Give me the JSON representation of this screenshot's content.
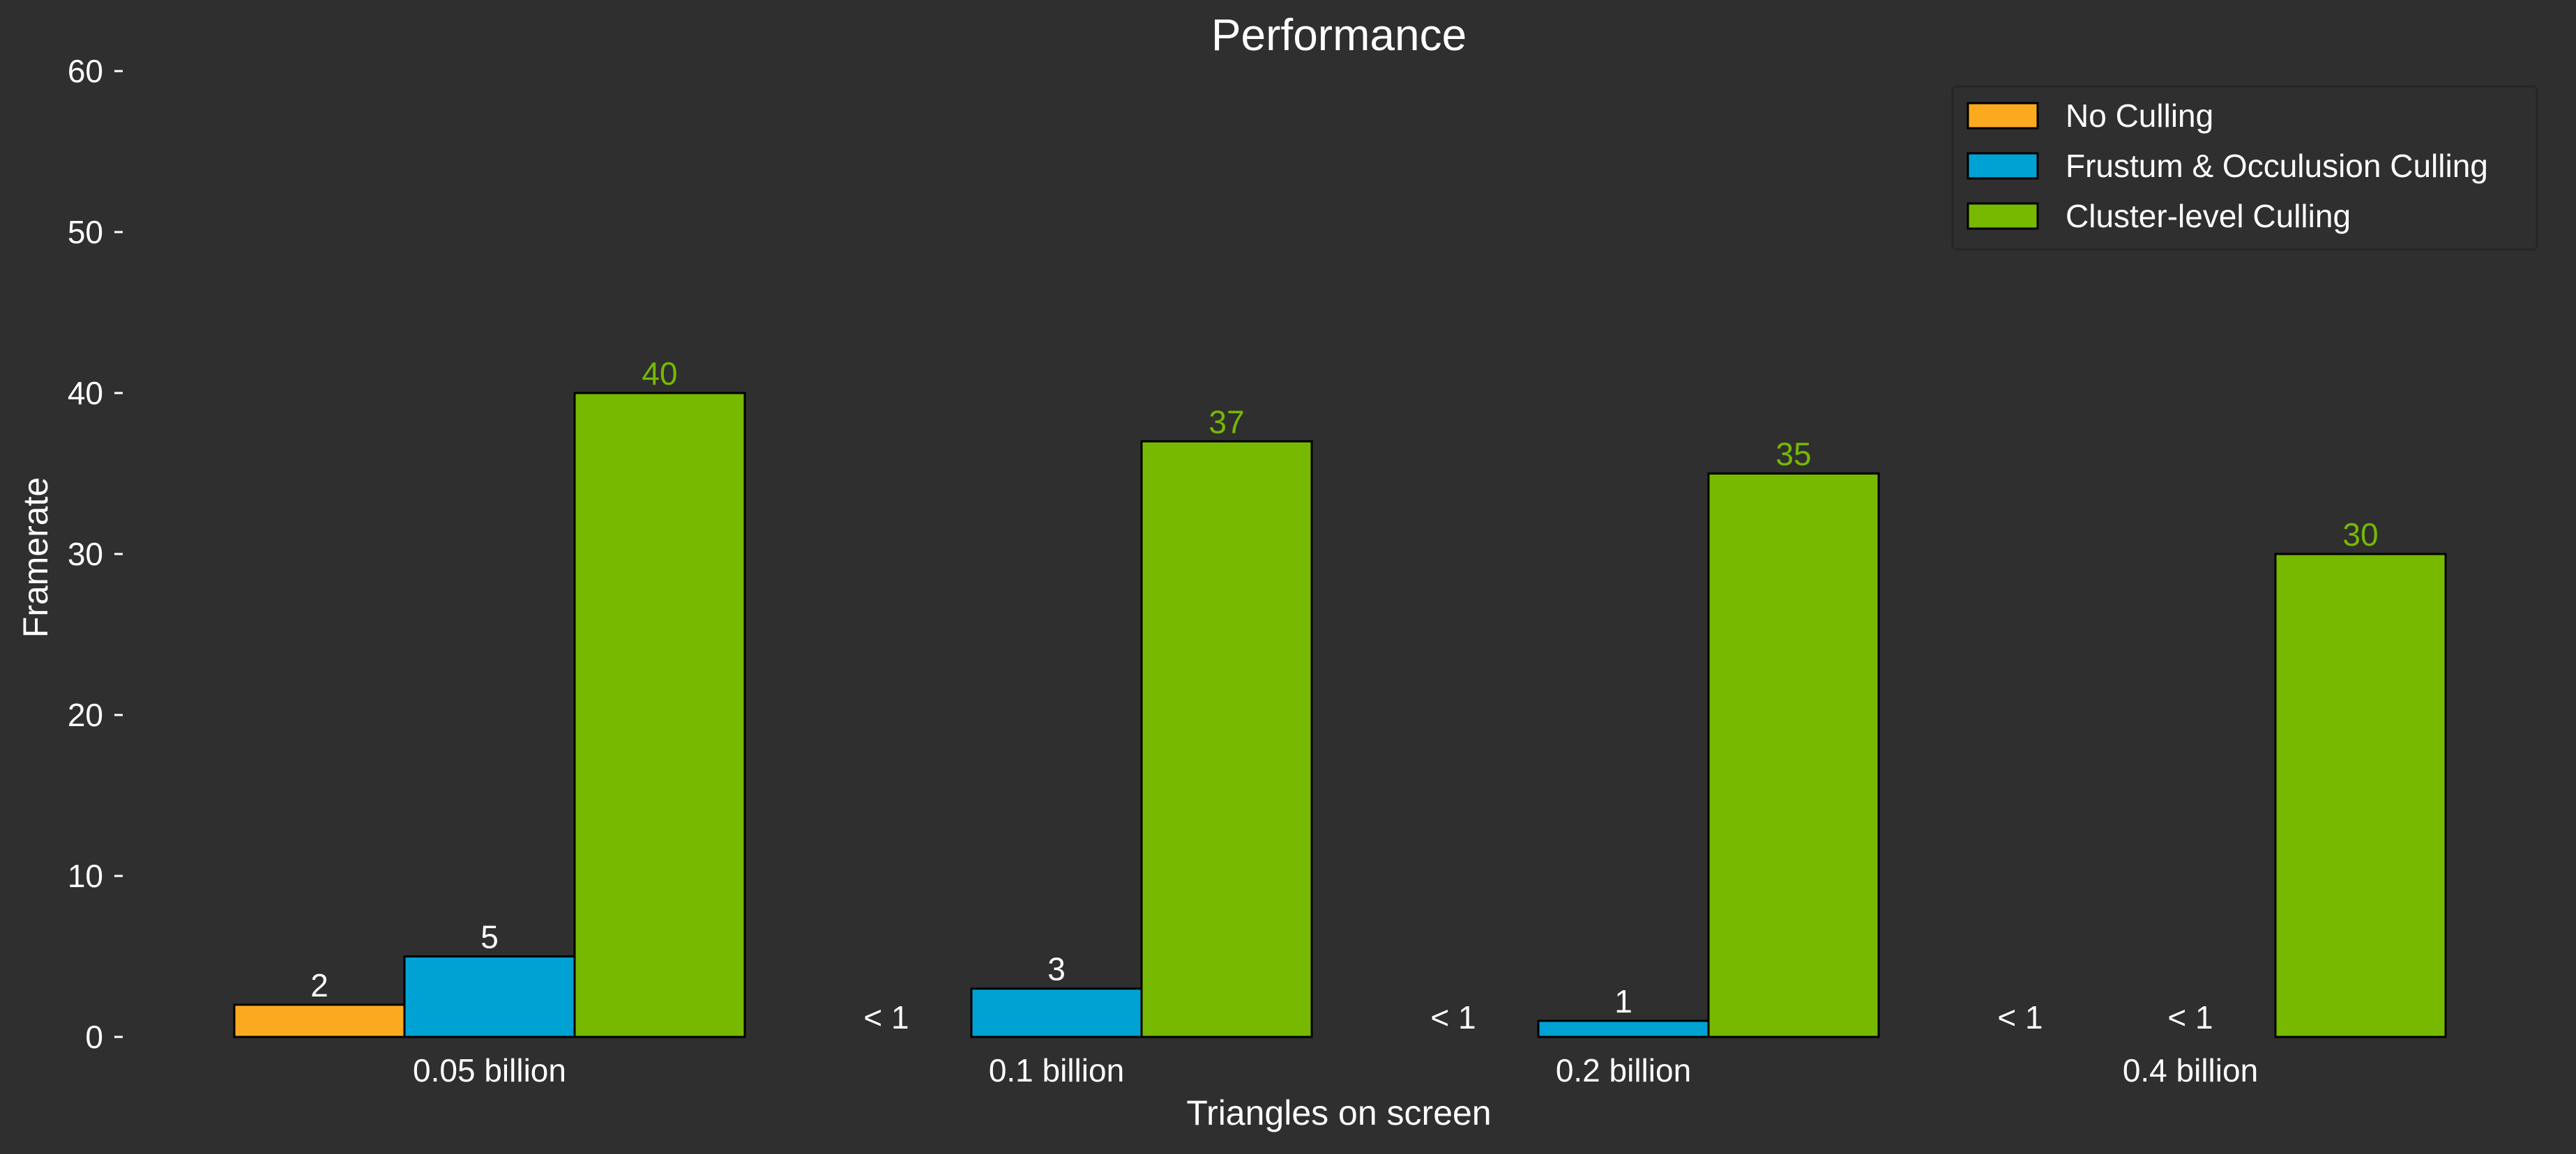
{
  "chart_data": {
    "type": "bar",
    "title": "Performance",
    "xlabel": "Triangles on screen",
    "ylabel": "Framerate",
    "ylim": [
      0,
      60
    ],
    "yticks": [
      0,
      10,
      20,
      30,
      40,
      50,
      60
    ],
    "grid": false,
    "legend_position": "top-right",
    "categories": [
      "0.05 billion",
      "0.1 billion",
      "0.2 billion",
      "0.4 billion"
    ],
    "series": [
      {
        "name": "No Culling",
        "color": "#fbaa1f",
        "label_color": "#ffffff",
        "values": [
          2,
          0,
          0,
          0
        ],
        "labels": [
          "2",
          "< 1",
          "< 1",
          "< 1"
        ]
      },
      {
        "name": "Frustum & Occulusion Culling",
        "color": "#00a2d3",
        "label_color": "#ffffff",
        "values": [
          5,
          3,
          1,
          0
        ],
        "labels": [
          "5",
          "3",
          "1",
          "< 1"
        ]
      },
      {
        "name": "Cluster-level Culling",
        "color": "#76b900",
        "label_color": "#76b900",
        "values": [
          40,
          37,
          35,
          30
        ],
        "labels": [
          "40",
          "37",
          "35",
          "30"
        ]
      }
    ]
  },
  "colors": {
    "background": "#2f2f2f",
    "text": "#ffffff",
    "bar_edge": "#000000"
  }
}
